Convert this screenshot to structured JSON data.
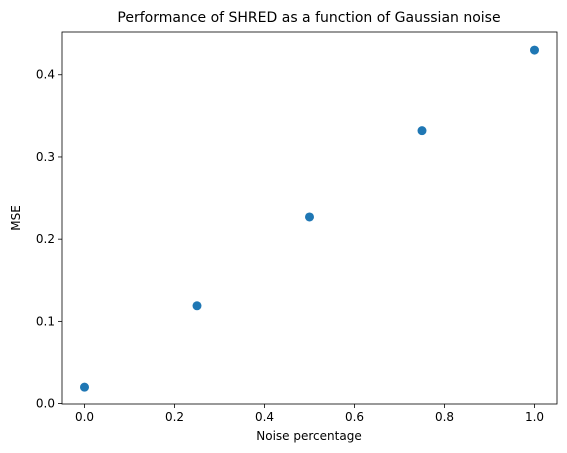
{
  "chart_data": {
    "type": "scatter",
    "title": "Performance of SHRED as a function of Gaussian noise",
    "xlabel": "Noise percentage",
    "ylabel": "MSE",
    "xlim": [
      -0.05,
      1.05
    ],
    "ylim": [
      -0.0005,
      0.452
    ],
    "xticks": [
      0.0,
      0.2,
      0.4,
      0.6,
      0.8,
      1.0
    ],
    "xtick_labels": [
      "0.0",
      "0.2",
      "0.4",
      "0.6",
      "0.8",
      "1.0"
    ],
    "yticks": [
      0.0,
      0.1,
      0.2,
      0.3,
      0.4
    ],
    "ytick_labels": [
      "0.0",
      "0.1",
      "0.2",
      "0.3",
      "0.4"
    ],
    "grid": false,
    "point_color": "#1f77b4",
    "x": [
      0.0,
      0.25,
      0.5,
      0.75,
      1.0
    ],
    "y": [
      0.02,
      0.119,
      0.227,
      0.332,
      0.43
    ]
  }
}
